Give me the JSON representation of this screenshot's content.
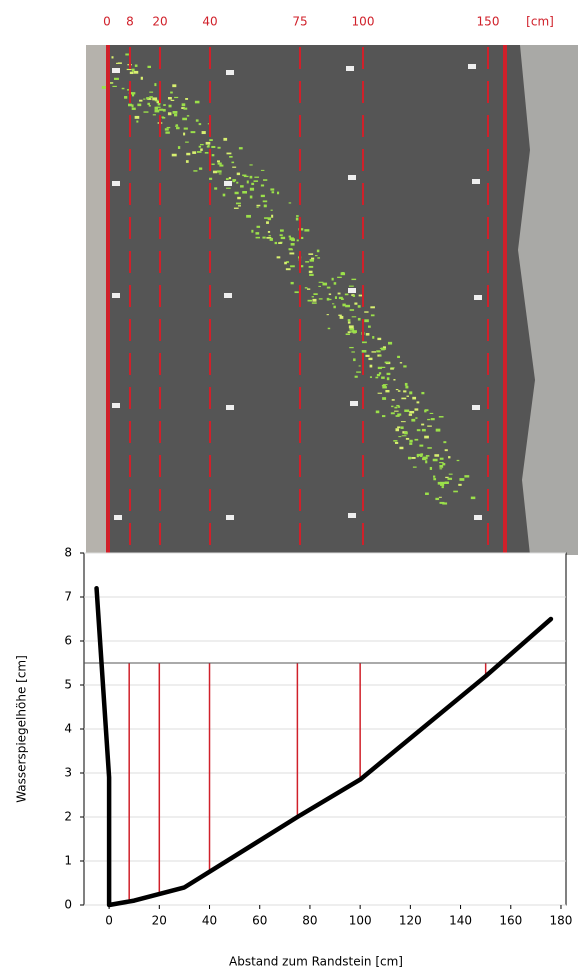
{
  "photo": {
    "labels": [
      "0",
      "8",
      "20",
      "40",
      "75",
      "100",
      "150",
      "[cm]"
    ]
  },
  "chart_data": {
    "type": "line",
    "x_label": "Abstand zum Randstein [cm]",
    "y_label": "Wasserspiegelhöhe [cm]",
    "x": [
      -5,
      0,
      0,
      10,
      30,
      75,
      100,
      150,
      176
    ],
    "series": [
      {
        "color": "#000000",
        "values": [
          7.2,
          2.9,
          0,
          0.1,
          0.4,
          2.0,
          2.85,
          5.2,
          6.5
        ]
      }
    ],
    "reference_y": 5.5,
    "section_x": [
      8,
      20,
      40,
      75,
      100,
      150
    ],
    "section_color": "#d0202a",
    "xlim": [
      -10,
      182
    ],
    "xticks": [
      0,
      20,
      40,
      60,
      80,
      100,
      120,
      140,
      160,
      180
    ],
    "ylim": [
      0,
      8
    ],
    "yticks": [
      0,
      1,
      2,
      3,
      4,
      5,
      6,
      7,
      8
    ],
    "grid": true
  }
}
